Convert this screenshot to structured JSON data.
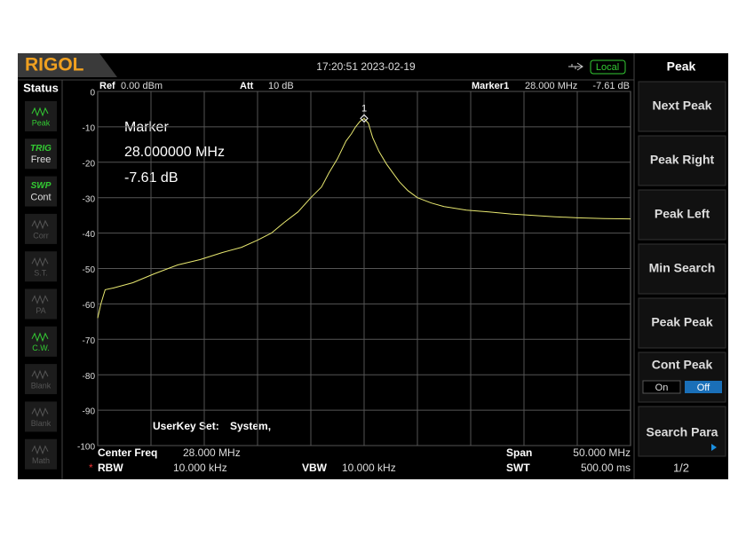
{
  "header": {
    "logo": "RIGOL",
    "time": "17:20:51 2023-02-19",
    "mode": "Local"
  },
  "status": {
    "title": "Status",
    "items": [
      {
        "label": "Peak"
      },
      {
        "title": "TRIG",
        "label": "Free"
      },
      {
        "title": "SWP",
        "label": "Cont"
      },
      {
        "label": "Corr"
      },
      {
        "label": "S.T."
      },
      {
        "label": "PA"
      },
      {
        "label": "C.W."
      },
      {
        "label": "Blank"
      },
      {
        "label": "Blank"
      },
      {
        "label": "Math"
      }
    ]
  },
  "display": {
    "ref_label": "Ref",
    "ref_value": "0.00 dBm",
    "att_label": "Att",
    "att_value": "10 dB",
    "marker_label": "Marker1",
    "marker_freq": "28.000 MHz",
    "marker_level": "-7.61 dB",
    "marker_box": {
      "title": "Marker",
      "freq": "28.000000 MHz",
      "level": "-7.61 dB"
    },
    "marker_number": "1",
    "marker_point": {
      "x": 28,
      "y": -7.61
    },
    "userkey_label": "UserKey Set:",
    "userkey_value": "System,",
    "trace": {
      "color": "#e8e870",
      "xlim": [
        3,
        53
      ],
      "ylim": [
        -100,
        0
      ],
      "yticks": [
        0,
        -10,
        -20,
        -30,
        -40,
        -50,
        -60,
        -70,
        -80,
        -90,
        -100
      ],
      "x": [
        3,
        3.3,
        3.7,
        4.5,
        6.3,
        8.3,
        10.5,
        12.6,
        14.7,
        16.5,
        18,
        19.3,
        20.5,
        21.8,
        23,
        24,
        24.7,
        25.5,
        26.3,
        26.8,
        27.2,
        27.6,
        28,
        28.4,
        28.8,
        29.4,
        30.1,
        30.7,
        31.3,
        32.1,
        33,
        34.3,
        35.5,
        37.6,
        39.7,
        41.8,
        43.8,
        45.9,
        48,
        50.5,
        53
      ],
      "values": [
        -64,
        -60,
        -56,
        -55.5,
        -54,
        -51.5,
        -49,
        -47.5,
        -45.5,
        -44,
        -42,
        -40,
        -37,
        -34,
        -30,
        -27,
        -23,
        -19,
        -14,
        -12,
        -10,
        -8.5,
        -7.61,
        -9,
        -13,
        -17,
        -20.5,
        -23,
        -25.5,
        -28,
        -30,
        -31.5,
        -32.5,
        -33.5,
        -34,
        -34.6,
        -35,
        -35.4,
        -35.7,
        -35.9,
        -36
      ]
    },
    "center_label": "Center Freq",
    "center_value": "28.000 MHz",
    "span_label": "Span",
    "span_value": "50.000 MHz",
    "rbw_star": "*",
    "rbw_label": "RBW",
    "rbw_value": "10.000 kHz",
    "vbw_label": "VBW",
    "vbw_value": "10.000 kHz",
    "swt_label": "SWT",
    "swt_value": "500.00 ms"
  },
  "softkeys": {
    "title": "Peak",
    "keys": [
      "Next Peak",
      "Peak Right",
      "Peak Left",
      "Min Search",
      "Peak Peak",
      "Cont Peak",
      "Search Para"
    ],
    "cont_on": "On",
    "cont_off": "Off",
    "page": "1/2"
  }
}
